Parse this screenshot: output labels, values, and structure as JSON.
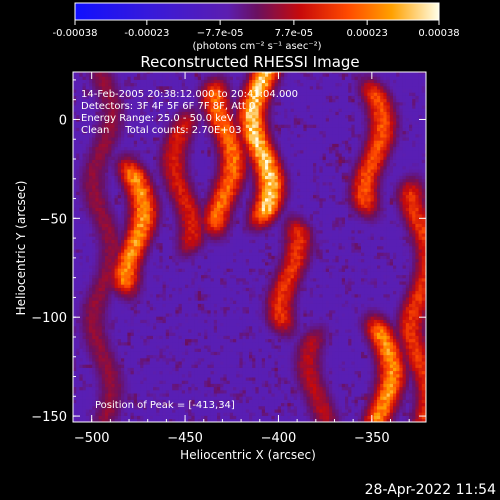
{
  "chart_data": {
    "type": "heatmap",
    "title": "Reconstructed RHESSI Image",
    "xlabel": "Heliocentric X (arcsec)",
    "ylabel": "Heliocentric Y (arcsec)",
    "xlim": [
      -510,
      -321
    ],
    "ylim": [
      -153,
      24
    ],
    "x_ticks": [
      -500,
      -450,
      -400,
      -350
    ],
    "y_ticks": [
      0,
      -50,
      -100,
      -150
    ],
    "colorbar": {
      "min": -0.00038,
      "max": 0.00038,
      "tick_values": [
        -0.00038,
        -0.00023,
        -7.7e-05,
        7.7e-05,
        0.00023,
        0.00038
      ],
      "tick_labels": [
        "-0.00038",
        "-0.00023",
        "−7.7e-05",
        "7.7e-05",
        "0.00023",
        "0.00038"
      ],
      "unit_label": "(photons cm⁻² s⁻¹ asec⁻²)"
    },
    "info_lines": [
      "14-Feb-2005 20:38:12.000 to 20:41:04.000",
      "Detectors: 3F 4F 5F 6F 7F 8F, Att 0",
      "Energy Range: 25.0 - 50.0 keV",
      "Clean     Total counts: 2.70E+03"
    ],
    "peak_label": "Position of Peak = [-413,34]",
    "bright_ridges": [
      {
        "x": -495,
        "y0": 20,
        "y1": -150,
        "level": 0.55
      },
      {
        "x": -478,
        "y0": -30,
        "y1": -80,
        "level": 0.85
      },
      {
        "x": -452,
        "y0": -5,
        "y1": -60,
        "level": 0.65
      },
      {
        "x": -430,
        "y0": 10,
        "y1": -50,
        "level": 0.8
      },
      {
        "x": -410,
        "y0": 30,
        "y1": -45,
        "level": 0.95
      },
      {
        "x": -395,
        "y0": -60,
        "y1": -100,
        "level": 0.7
      },
      {
        "x": -350,
        "y0": 10,
        "y1": -40,
        "level": 0.75
      },
      {
        "x": -345,
        "y0": -110,
        "y1": -150,
        "level": 0.85
      },
      {
        "x": -380,
        "y0": -115,
        "y1": -150,
        "level": 0.6
      },
      {
        "x": -325,
        "y0": -40,
        "y1": -150,
        "level": 0.7
      }
    ]
  },
  "timestamp": "28-Apr-2022 11:54"
}
